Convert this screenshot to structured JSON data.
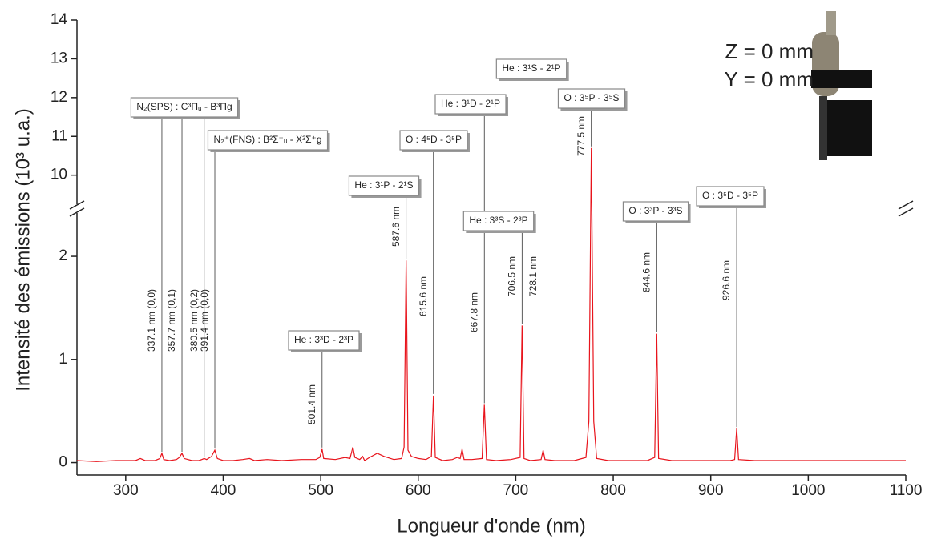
{
  "chart_data": {
    "type": "line",
    "ylabel": "Intensité des émissions (10³ u.a.)",
    "xlabel": "Longueur d'onde (nm)",
    "xlim": [
      250,
      1100
    ],
    "xticks": [
      300,
      400,
      500,
      600,
      700,
      800,
      900,
      1000,
      1100
    ],
    "ylim": [
      -0.12,
      14
    ],
    "ybreak": [
      2.42,
      9.25
    ],
    "yticks": [
      0,
      1,
      2,
      10,
      11,
      12,
      13,
      14
    ],
    "x": [
      250,
      270,
      290,
      310,
      315,
      320,
      330,
      335,
      337.1,
      339,
      345,
      352,
      355,
      357.7,
      360,
      368,
      375,
      378,
      380.5,
      383,
      388,
      391.4,
      394,
      400,
      410,
      420,
      427,
      432,
      445,
      460,
      480,
      495,
      499,
      501.4,
      503,
      515,
      525,
      530,
      533,
      535,
      540,
      543,
      545,
      550,
      558,
      565,
      575,
      583,
      585.5,
      587.6,
      589.5,
      593,
      600,
      608,
      613.5,
      615.6,
      617.5,
      625,
      635,
      640,
      643,
      645,
      647,
      655,
      665.5,
      667.8,
      670,
      680,
      695,
      704.5,
      706.5,
      708.5,
      715,
      726,
      728.1,
      730,
      740,
      760,
      772,
      775,
      777.5,
      780,
      783,
      795,
      815,
      835,
      842.5,
      844.6,
      846.5,
      860,
      880,
      905,
      920,
      924.5,
      926.6,
      928.5,
      945,
      970,
      1000,
      1030,
      1060,
      1100
    ],
    "series": [
      {
        "color": "#e8141c",
        "values": [
          0.02,
          0.01,
          0.02,
          0.02,
          0.04,
          0.02,
          0.02,
          0.04,
          0.09,
          0.03,
          0.02,
          0.03,
          0.05,
          0.09,
          0.04,
          0.02,
          0.02,
          0.03,
          0.04,
          0.03,
          0.06,
          0.12,
          0.04,
          0.02,
          0.02,
          0.03,
          0.04,
          0.02,
          0.03,
          0.02,
          0.03,
          0.03,
          0.05,
          0.13,
          0.04,
          0.03,
          0.05,
          0.04,
          0.15,
          0.05,
          0.03,
          0.06,
          0.02,
          0.05,
          0.09,
          0.06,
          0.03,
          0.04,
          0.15,
          1.96,
          0.12,
          0.06,
          0.04,
          0.03,
          0.06,
          0.65,
          0.05,
          0.02,
          0.03,
          0.05,
          0.04,
          0.13,
          0.03,
          0.03,
          0.04,
          0.56,
          0.03,
          0.02,
          0.03,
          0.05,
          1.33,
          0.04,
          0.02,
          0.03,
          0.12,
          0.03,
          0.02,
          0.02,
          0.05,
          0.4,
          10.7,
          0.4,
          0.04,
          0.02,
          0.02,
          0.02,
          0.05,
          1.25,
          0.04,
          0.02,
          0.02,
          0.02,
          0.02,
          0.03,
          0.33,
          0.03,
          0.02,
          0.02,
          0.02,
          0.02,
          0.02,
          0.02
        ]
      }
    ],
    "annotations": [
      {
        "label": "N₂(SPS) : C³Πᵤ - B³Πg",
        "lines": [
          {
            "x": 337.1,
            "text": "337.1 nm (0,0)"
          },
          {
            "x": 357.7,
            "text": "357.7 nm (0,1)"
          },
          {
            "x": 380.5,
            "text": "380.5 nm (0,2)"
          }
        ]
      },
      {
        "label": "N₂⁺(FNS) : B²Σ⁺ᵤ - X²Σ⁺g",
        "lines": [
          {
            "x": 391.4,
            "text": "391.4 nm (0,0)"
          }
        ]
      },
      {
        "label": "He : 3³D - 2³P",
        "lines": [
          {
            "x": 501.4,
            "text": "501.4 nm"
          }
        ]
      },
      {
        "label": "He : 3¹P - 2¹S",
        "lines": [
          {
            "x": 587.6,
            "text": "587.6 nm"
          }
        ]
      },
      {
        "label": "O : 4⁵D - 3⁵P",
        "lines": [
          {
            "x": 615.6,
            "text": "615.6 nm"
          }
        ]
      },
      {
        "label": "He : 3¹D - 2¹P",
        "lines": [
          {
            "x": 667.8,
            "text": "667.8 nm"
          }
        ]
      },
      {
        "label": "He : 3³S - 2³P",
        "lines": [
          {
            "x": 706.5,
            "text": "706.5 nm"
          }
        ]
      },
      {
        "label": "He : 3¹S - 2¹P",
        "lines": [
          {
            "x": 728.1,
            "text": "728.1 nm"
          }
        ]
      },
      {
        "label": "O : 3⁵P - 3⁵S",
        "lines": [
          {
            "x": 777.5,
            "text": "777.5 nm"
          }
        ]
      },
      {
        "label": "O : 3³P - 3³S",
        "lines": [
          {
            "x": 844.6,
            "text": "844.6 nm"
          }
        ]
      },
      {
        "label": "O : 3⁵D - 3⁵P",
        "lines": [
          {
            "x": 926.6,
            "text": "926.6 nm"
          }
        ]
      }
    ],
    "position_labels": [
      "Z = 0 mm",
      "Y = 0 mm"
    ]
  }
}
